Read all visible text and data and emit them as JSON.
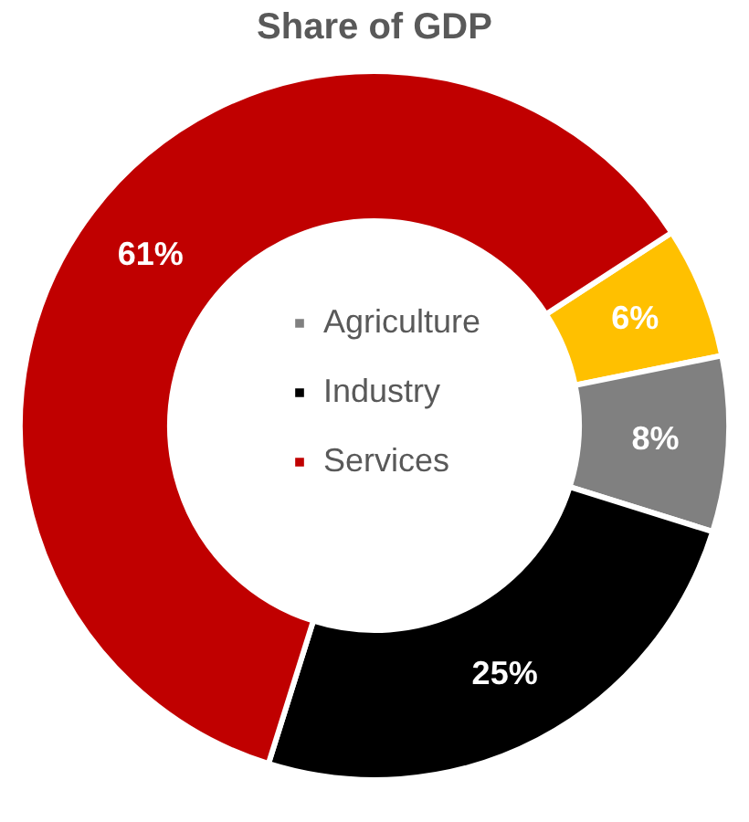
{
  "chart_data": {
    "type": "donut",
    "title": "Share of GDP",
    "categories": [
      null,
      "Agriculture",
      "Industry",
      "Services"
    ],
    "values": [
      6,
      8,
      25,
      61
    ],
    "colors": [
      "#ffc000",
      "#808080",
      "#000000",
      "#c00000"
    ],
    "value_labels": [
      "6%",
      "8%",
      "25%",
      "61%"
    ],
    "legend": "center"
  }
}
